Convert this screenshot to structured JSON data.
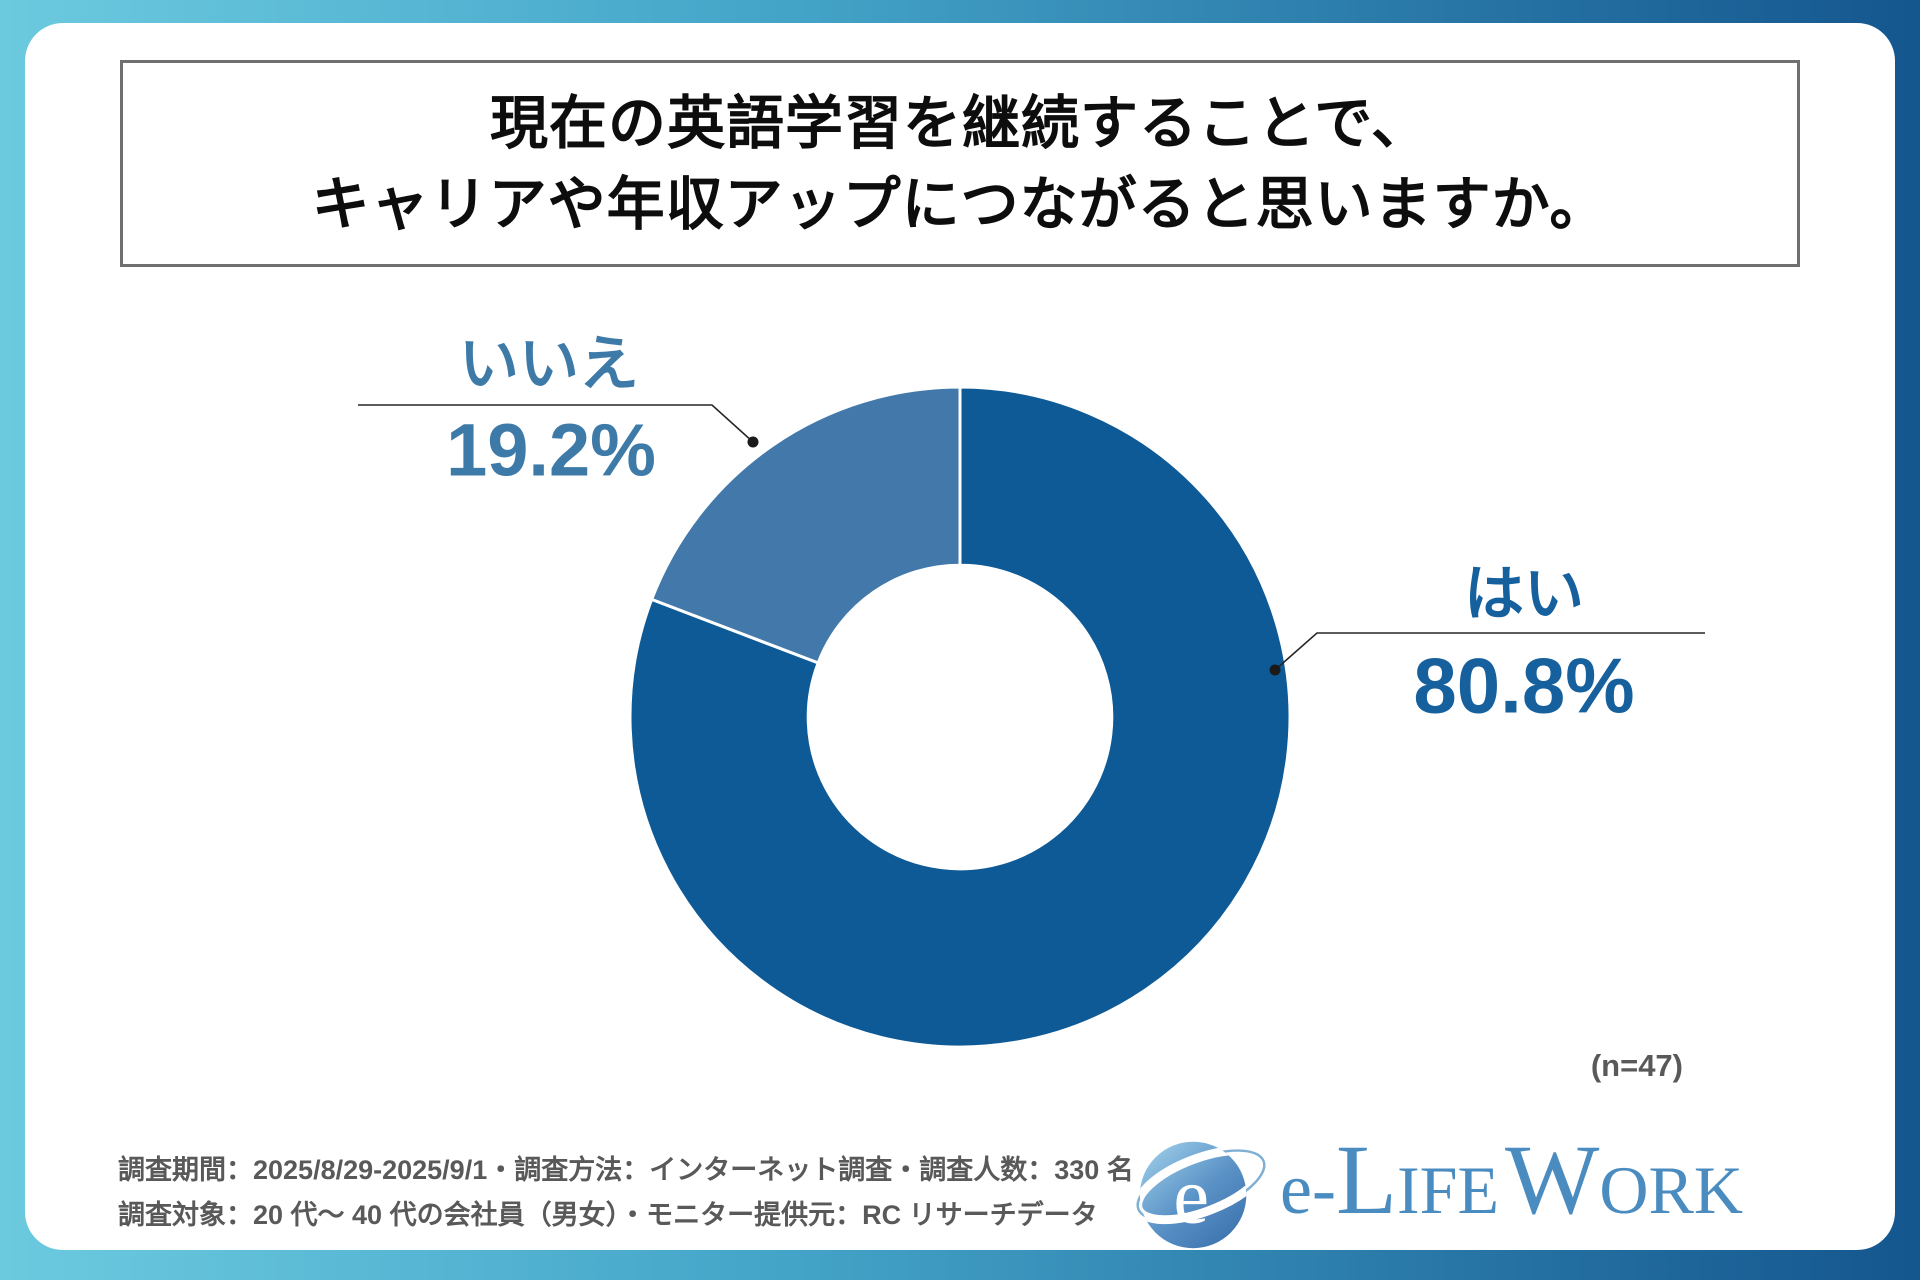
{
  "title": {
    "line1": "現在の英語学習を継続することで、",
    "line2": "キャリアや年収アップにつながると思いますか。"
  },
  "chart_data": {
    "type": "pie",
    "subtype": "donut",
    "title": "現在の英語学習を継続することで、キャリアや年収アップにつながると思いますか。",
    "categories": [
      "はい",
      "いいえ"
    ],
    "values": [
      80.8,
      19.2
    ],
    "display_values": [
      "80.8%",
      "19.2%"
    ],
    "unit": "%",
    "sample_size": 47,
    "start_angle_deg": 0,
    "direction": "clockwise",
    "inner_radius_ratio": 0.46,
    "legend_position": "callout-labels",
    "colors": [
      "#0e5a96",
      "#4279aa"
    ],
    "label_colors": [
      "#15609d",
      "#3e7aa8"
    ],
    "divider_color": "#ffffff",
    "leader_line_color": "#262626"
  },
  "sample_label": "(n=47)",
  "footnote": {
    "line1": "調査期間：2025/8/29-2025/9/1・調査方法：インターネット調査・調査人数：330 名",
    "line2": "調査対象：20 代〜 40 代の会社員（男女）・モニター提供元：RC リサーチデータ"
  },
  "logo": {
    "icon_letter": "e",
    "part_e": "e-",
    "part_l": "L",
    "part_ife": "IFE",
    "part_w": "W",
    "part_ork": "ORK",
    "brand_color": "#4a8cc0"
  },
  "frame": {
    "gradient_left": "#6ccadf",
    "gradient_right": "#14568e",
    "panel_color": "#ffffff"
  }
}
